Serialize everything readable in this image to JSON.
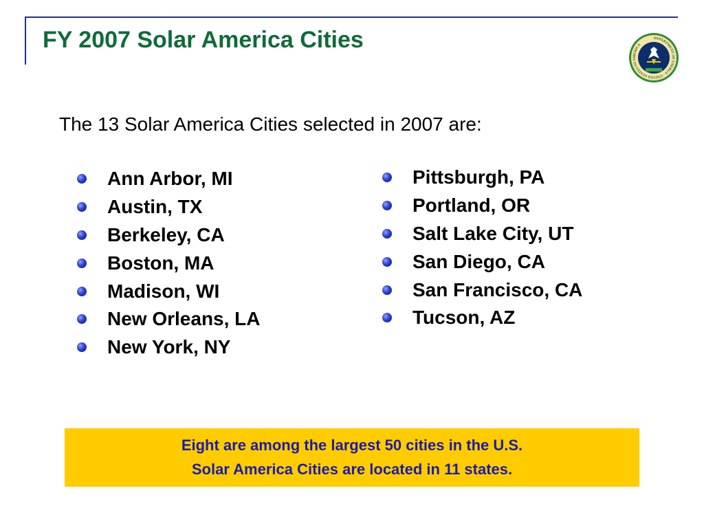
{
  "slide": {
    "title": "FY 2007 Solar America Cities",
    "intro": "The 13 Solar America Cities selected in 2007 are:",
    "left_cities": [
      "Ann Arbor, MI",
      "Austin, TX",
      "Berkeley, CA",
      "Boston, MA",
      "Madison, WI",
      "New Orleans, LA",
      "New York, NY"
    ],
    "right_cities": [
      "Pittsburgh, PA",
      "Portland, OR",
      "Salt Lake City, UT",
      "San Diego, CA",
      "San Francisco, CA",
      "Tucson, AZ"
    ],
    "note": {
      "line1": "Eight are among the largest 50 cities in the U.S.",
      "line2": "Solar America Cities are located in 11 states."
    }
  },
  "seal": {
    "icon": "department-of-energy-seal-icon",
    "text": "DEPARTMENT OF ENERGY · UNITED STATES OF AMERICA"
  },
  "colors": {
    "title": "#0f6b3a",
    "frame": "#1f2f8f",
    "note_background": "#ffcc00",
    "note_text": "#1c1ca8",
    "bullet": "#2b3fd0"
  }
}
